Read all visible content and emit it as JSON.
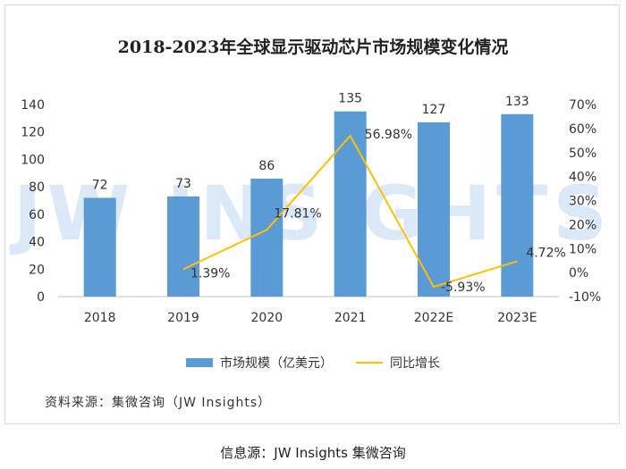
{
  "chart_data": {
    "type": "bar",
    "title": "2018-2023年全球显示驱动芯片市场规模变化情况",
    "watermark": "JW INSIGHTS",
    "categories": [
      "2018",
      "2019",
      "2020",
      "2021",
      "2022E",
      "2023E"
    ],
    "series": [
      {
        "name": "市场规模（亿美元）",
        "type": "bar",
        "axis": "left",
        "values": [
          72,
          73,
          86,
          135,
          127,
          133
        ],
        "labels": [
          "72",
          "73",
          "86",
          "135",
          "127",
          "133"
        ],
        "color": "#5b9bd5"
      },
      {
        "name": "同比增长",
        "type": "line",
        "axis": "right",
        "x": [
          "2019",
          "2020",
          "2021",
          "2022E",
          "2023E"
        ],
        "values": [
          1.39,
          17.81,
          56.98,
          -5.93,
          4.72
        ],
        "labels": [
          "1.39%",
          "17.81%",
          "56.98%",
          "-5.93%",
          "4.72%"
        ],
        "color": "#ffc000"
      }
    ],
    "ylim_left": [
      0,
      140
    ],
    "yticks_left": [
      "0",
      "20",
      "40",
      "60",
      "80",
      "100",
      "120",
      "140"
    ],
    "ylim_right": [
      -10,
      70
    ],
    "yticks_right": [
      "-10%",
      "0%",
      "10%",
      "20%",
      "30%",
      "40%",
      "50%",
      "60%",
      "70%"
    ],
    "legend_position": "bottom",
    "grid": false
  },
  "legend": {
    "bar_label": "市场规模（亿美元）",
    "line_label": "同比增长"
  },
  "source_note": "资料来源：集微咨询（JW Insights）",
  "caption": "信息源：JW Insights 集微咨询"
}
